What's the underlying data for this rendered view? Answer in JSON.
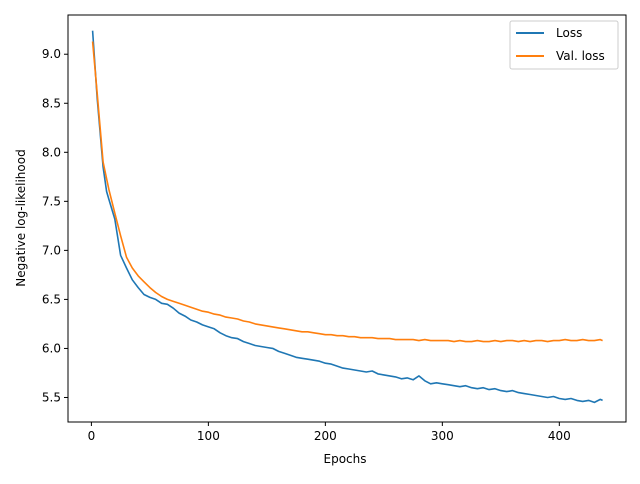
{
  "chart_data": {
    "type": "line",
    "title": "",
    "xlabel": "Epochs",
    "ylabel": "Negative log-likelihood",
    "xlim": [
      -20,
      457
    ],
    "ylim": [
      5.25,
      9.4
    ],
    "xticks": [
      0,
      100,
      200,
      300,
      400
    ],
    "xtick_labels": [
      "0",
      "100",
      "200",
      "300",
      "400"
    ],
    "yticks": [
      5.5,
      6.0,
      6.5,
      7.0,
      7.5,
      8.0,
      8.5,
      9.0
    ],
    "ytick_labels": [
      "5.5",
      "6.0",
      "6.5",
      "7.0",
      "7.5",
      "8.0",
      "8.5",
      "9.0"
    ],
    "grid": false,
    "legend_position": "upper right",
    "series": [
      {
        "name": "Loss",
        "color": "#1f77b4",
        "x": [
          1,
          5,
          10,
          13,
          15,
          20,
          25,
          30,
          35,
          40,
          45,
          50,
          55,
          60,
          65,
          70,
          75,
          80,
          85,
          90,
          95,
          100,
          105,
          110,
          115,
          120,
          125,
          130,
          135,
          140,
          145,
          150,
          155,
          160,
          165,
          170,
          175,
          180,
          185,
          190,
          195,
          200,
          205,
          210,
          215,
          220,
          225,
          230,
          235,
          240,
          245,
          250,
          255,
          260,
          265,
          270,
          275,
          280,
          285,
          290,
          295,
          300,
          305,
          310,
          315,
          320,
          325,
          330,
          335,
          340,
          345,
          350,
          355,
          360,
          365,
          370,
          375,
          380,
          385,
          390,
          395,
          400,
          405,
          410,
          415,
          420,
          425,
          430,
          435,
          437
        ],
        "y": [
          9.24,
          8.55,
          7.85,
          7.6,
          7.52,
          7.32,
          6.95,
          6.82,
          6.7,
          6.62,
          6.55,
          6.52,
          6.5,
          6.46,
          6.45,
          6.41,
          6.36,
          6.33,
          6.29,
          6.27,
          6.24,
          6.22,
          6.2,
          6.16,
          6.13,
          6.11,
          6.1,
          6.07,
          6.05,
          6.03,
          6.02,
          6.01,
          6.0,
          5.97,
          5.95,
          5.93,
          5.91,
          5.9,
          5.89,
          5.88,
          5.87,
          5.85,
          5.84,
          5.82,
          5.8,
          5.79,
          5.78,
          5.77,
          5.76,
          5.77,
          5.74,
          5.73,
          5.72,
          5.71,
          5.69,
          5.7,
          5.68,
          5.72,
          5.67,
          5.64,
          5.65,
          5.64,
          5.63,
          5.62,
          5.61,
          5.62,
          5.6,
          5.59,
          5.6,
          5.58,
          5.59,
          5.57,
          5.56,
          5.57,
          5.55,
          5.54,
          5.53,
          5.52,
          5.51,
          5.5,
          5.51,
          5.49,
          5.48,
          5.49,
          5.47,
          5.46,
          5.47,
          5.45,
          5.48,
          5.47
        ]
      },
      {
        "name": "Val. loss",
        "color": "#ff7f0e",
        "x": [
          1,
          5,
          10,
          15,
          20,
          25,
          30,
          35,
          40,
          45,
          50,
          55,
          60,
          65,
          70,
          75,
          80,
          85,
          90,
          95,
          100,
          105,
          110,
          115,
          120,
          125,
          130,
          135,
          140,
          145,
          150,
          155,
          160,
          165,
          170,
          175,
          180,
          185,
          190,
          195,
          200,
          205,
          210,
          215,
          220,
          225,
          230,
          235,
          240,
          245,
          250,
          255,
          260,
          265,
          270,
          275,
          280,
          285,
          290,
          295,
          300,
          305,
          310,
          315,
          320,
          325,
          330,
          335,
          340,
          345,
          350,
          355,
          360,
          365,
          370,
          375,
          380,
          385,
          390,
          395,
          400,
          405,
          410,
          415,
          420,
          425,
          430,
          435,
          437
        ],
        "y": [
          9.13,
          8.6,
          7.9,
          7.62,
          7.38,
          7.15,
          6.93,
          6.82,
          6.74,
          6.68,
          6.62,
          6.57,
          6.53,
          6.5,
          6.48,
          6.46,
          6.44,
          6.42,
          6.4,
          6.38,
          6.37,
          6.35,
          6.34,
          6.32,
          6.31,
          6.3,
          6.28,
          6.27,
          6.25,
          6.24,
          6.23,
          6.22,
          6.21,
          6.2,
          6.19,
          6.18,
          6.17,
          6.17,
          6.16,
          6.15,
          6.14,
          6.14,
          6.13,
          6.13,
          6.12,
          6.12,
          6.11,
          6.11,
          6.11,
          6.1,
          6.1,
          6.1,
          6.09,
          6.09,
          6.09,
          6.09,
          6.08,
          6.09,
          6.08,
          6.08,
          6.08,
          6.08,
          6.07,
          6.08,
          6.07,
          6.07,
          6.08,
          6.07,
          6.07,
          6.08,
          6.07,
          6.08,
          6.08,
          6.07,
          6.08,
          6.07,
          6.08,
          6.08,
          6.07,
          6.08,
          6.08,
          6.09,
          6.08,
          6.08,
          6.09,
          6.08,
          6.08,
          6.09,
          6.08
        ]
      }
    ]
  }
}
